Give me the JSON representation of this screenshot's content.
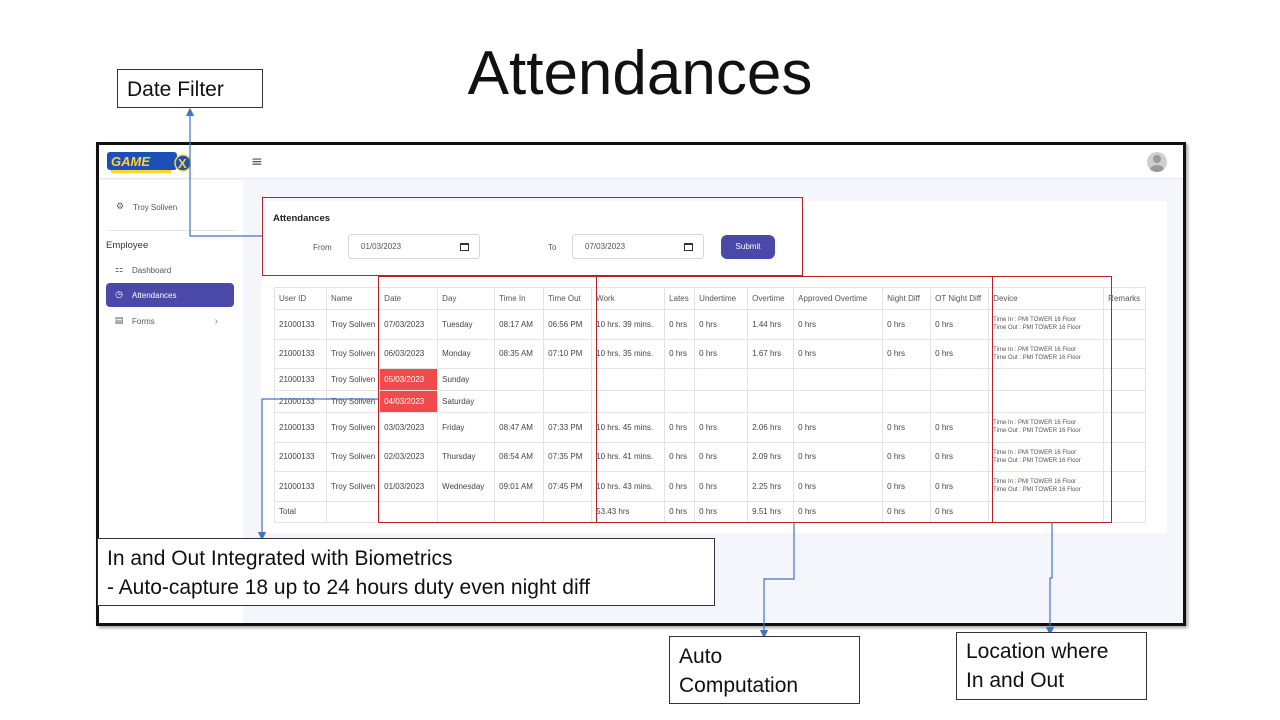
{
  "slide": {
    "title": "Attendances",
    "callouts": {
      "date_filter": "Date Filter",
      "biometrics_line1": "In and Out Integrated with Biometrics",
      "biometrics_line2": "- Auto-capture 18 up to 24 hours duty even night diff",
      "auto_computation_line1": "Auto",
      "auto_computation_line2": "Computation",
      "location_line1": "Location where",
      "location_line2": "In and Out"
    },
    "colors": {
      "highlight_box": "#b8202a",
      "arrow": "#4472c4"
    }
  },
  "app": {
    "logo_icon": "gamex-logo-icon",
    "menu_icon": "hamburger-icon",
    "menu_glyph": "≡",
    "profile_icon": "avatar-icon",
    "accent_color": "#4a48a8",
    "sidebar": {
      "user_name": "Troy Soliven",
      "section_label": "Employee",
      "items": [
        {
          "label": "Dashboard",
          "icon": "grid-icon",
          "active": false
        },
        {
          "label": "Attendances",
          "icon": "clock-icon",
          "active": true
        },
        {
          "label": "Forms",
          "icon": "form-icon",
          "active": false
        }
      ]
    },
    "card": {
      "title": "Attendances",
      "from_label": "From",
      "from_value": "01/03/2023",
      "to_label": "To",
      "to_value": "07/03/2023",
      "submit_label": "Submit"
    },
    "table": {
      "columns": [
        "User ID",
        "Name",
        "Date",
        "Day",
        "Time In",
        "Time Out",
        "Work",
        "Lates",
        "Undertime",
        "Overtime",
        "Approved Overtime",
        "Night Diff",
        "OT Night Diff",
        "Device",
        "Remarks"
      ],
      "rows": [
        {
          "user_id": "21000133",
          "name": "Troy Soliven",
          "date": "07/03/2023",
          "day": "Tuesday",
          "time_in": "08:17 AM",
          "time_out": "06:56 PM",
          "work": "10 hrs. 39 mins.",
          "lates": "0 hrs",
          "undertime": "0 hrs",
          "overtime": "1.44 hrs",
          "approved_ot": "0 hrs",
          "night_diff": "0 hrs",
          "ot_night_diff": "0 hrs",
          "device_in": "Time In : PMI TOWER 16 Floor",
          "device_out": "Time Out : PMI TOWER 16 Floor",
          "remarks": ""
        },
        {
          "user_id": "21000133",
          "name": "Troy Soliven",
          "date": "06/03/2023",
          "day": "Monday",
          "time_in": "08:35 AM",
          "time_out": "07:10 PM",
          "work": "10 hrs. 35 mins.",
          "lates": "0 hrs",
          "undertime": "0 hrs",
          "overtime": "1.67 hrs",
          "approved_ot": "0 hrs",
          "night_diff": "0 hrs",
          "ot_night_diff": "0 hrs",
          "device_in": "Time In : PMI TOWER 16 Floor",
          "device_out": "Time Out : PMI TOWER 16 Floor",
          "remarks": ""
        },
        {
          "user_id": "21000133",
          "name": "Troy Soliven",
          "date": "05/03/2023",
          "day": "Sunday",
          "time_in": "",
          "time_out": "",
          "work": "",
          "lates": "",
          "undertime": "",
          "overtime": "",
          "approved_ot": "",
          "night_diff": "",
          "ot_night_diff": "",
          "device_in": "",
          "device_out": "",
          "remarks": "",
          "highlight": true
        },
        {
          "user_id": "21000133",
          "name": "Troy Soliven",
          "date": "04/03/2023",
          "day": "Saturday",
          "time_in": "",
          "time_out": "",
          "work": "",
          "lates": "",
          "undertime": "",
          "overtime": "",
          "approved_ot": "",
          "night_diff": "",
          "ot_night_diff": "",
          "device_in": "",
          "device_out": "",
          "remarks": "",
          "highlight": true
        },
        {
          "user_id": "21000133",
          "name": "Troy Soliven",
          "date": "03/03/2023",
          "day": "Friday",
          "time_in": "08:47 AM",
          "time_out": "07:33 PM",
          "work": "10 hrs. 45 mins.",
          "lates": "0 hrs",
          "undertime": "0 hrs",
          "overtime": "2.06 hrs",
          "approved_ot": "0 hrs",
          "night_diff": "0 hrs",
          "ot_night_diff": "0 hrs",
          "device_in": "Time In : PMI TOWER 16 Floor",
          "device_out": "Time Out : PMI TOWER 16 Floor",
          "remarks": ""
        },
        {
          "user_id": "21000133",
          "name": "Troy Soliven",
          "date": "02/03/2023",
          "day": "Thursday",
          "time_in": "08:54 AM",
          "time_out": "07:35 PM",
          "work": "10 hrs. 41 mins.",
          "lates": "0 hrs",
          "undertime": "0 hrs",
          "overtime": "2.09 hrs",
          "approved_ot": "0 hrs",
          "night_diff": "0 hrs",
          "ot_night_diff": "0 hrs",
          "device_in": "Time In : PMI TOWER 16 Floor",
          "device_out": "Time Out : PMI TOWER 16 Floor",
          "remarks": ""
        },
        {
          "user_id": "21000133",
          "name": "Troy Soliven",
          "date": "01/03/2023",
          "day": "Wednesday",
          "time_in": "09:01 AM",
          "time_out": "07:45 PM",
          "work": "10 hrs. 43 mins.",
          "lates": "0 hrs",
          "undertime": "0 hrs",
          "overtime": "2.25 hrs",
          "approved_ot": "0 hrs",
          "night_diff": "0 hrs",
          "ot_night_diff": "0 hrs",
          "device_in": "Time In : PMI TOWER 16 Floor",
          "device_out": "Time Out : PMI TOWER 16 Floor",
          "remarks": ""
        }
      ],
      "total": {
        "label": "Total",
        "work": "53.43 hrs",
        "lates": "0 hrs",
        "undertime": "0 hrs",
        "overtime": "9.51 hrs",
        "approved_ot": "0 hrs",
        "night_diff": "0 hrs",
        "ot_night_diff": "0 hrs"
      }
    }
  }
}
